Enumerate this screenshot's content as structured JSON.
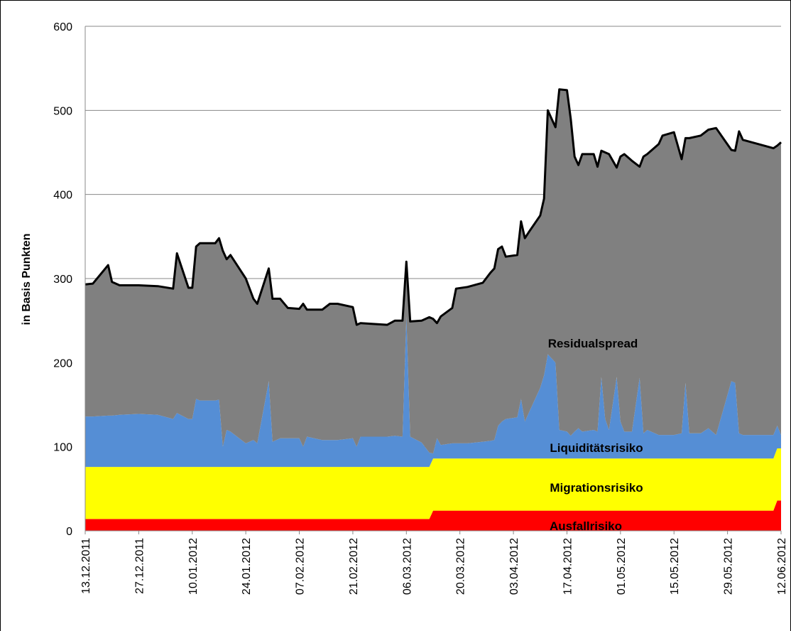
{
  "chart_data": {
    "type": "stacked_area",
    "y_label": "in Basis Punkten",
    "x": [
      "13.12.2011",
      "15.12.2011",
      "19.12.2011",
      "20.12.2011",
      "22.12.2011",
      "27.12.2011",
      "01.01.2012",
      "05.01.2012",
      "06.01.2012",
      "09.01.2012",
      "10.01.2012",
      "11.01.2012",
      "12.01.2012",
      "16.01.2012",
      "17.01.2012",
      "18.01.2012",
      "19.01.2012",
      "20.01.2012",
      "24.01.2012",
      "26.01.2012",
      "27.01.2012",
      "30.01.2012",
      "31.01.2012",
      "02.02.2012",
      "04.02.2012",
      "07.02.2012",
      "08.02.2012",
      "09.02.2012",
      "13.02.2012",
      "15.02.2012",
      "17.02.2012",
      "21.02.2012",
      "22.02.2012",
      "23.02.2012",
      "01.03.2012",
      "03.03.2012",
      "05.03.2012",
      "06.03.2012",
      "07.03.2012",
      "10.03.2012",
      "12.03.2012",
      "13.03.2012",
      "14.03.2012",
      "15.03.2012",
      "18.03.2012",
      "19.03.2012",
      "22.03.2012",
      "26.03.2012",
      "28.03.2012",
      "29.03.2012",
      "30.03.2012",
      "31.03.2012",
      "01.04.2012",
      "04.04.2012",
      "05.04.2012",
      "06.04.2012",
      "07.04.2012",
      "10.04.2012",
      "11.04.2012",
      "12.04.2012",
      "13.04.2012",
      "14.04.2012",
      "15.04.2012",
      "17.04.2012",
      "18.04.2012",
      "19.04.2012",
      "20.04.2012",
      "21.04.2012",
      "24.04.2012",
      "25.04.2012",
      "26.04.2012",
      "27.04.2012",
      "28.04.2012",
      "30.04.2012",
      "01.05.2012",
      "02.05.2012",
      "04.05.2012",
      "06.05.2012",
      "07.05.2012",
      "08.05.2012",
      "11.05.2012",
      "12.05.2012",
      "15.05.2012",
      "17.05.2012",
      "18.05.2012",
      "19.05.2012",
      "22.05.2012",
      "24.05.2012",
      "26.05.2012",
      "30.05.2012",
      "31.05.2012",
      "01.06.2012",
      "02.06.2012",
      "10.06.2012",
      "11.06.2012",
      "12.06.2012"
    ],
    "series": [
      {
        "name": "Ausfallrisiko",
        "color": "#ff0000",
        "values": [
          14,
          14,
          14,
          14,
          14,
          14,
          14,
          14,
          14,
          14,
          14,
          14,
          14,
          14,
          14,
          14,
          14,
          14,
          14,
          14,
          14,
          14,
          14,
          14,
          14,
          14,
          14,
          14,
          14,
          14,
          14,
          14,
          14,
          14,
          14,
          14,
          14,
          14,
          14,
          14,
          14,
          24,
          24,
          24,
          24,
          24,
          24,
          24,
          24,
          24,
          24,
          24,
          24,
          24,
          24,
          24,
          24,
          24,
          24,
          24,
          24,
          24,
          24,
          24,
          24,
          24,
          24,
          24,
          24,
          24,
          24,
          24,
          24,
          24,
          24,
          24,
          24,
          24,
          24,
          24,
          24,
          24,
          24,
          24,
          24,
          24,
          24,
          24,
          24,
          24,
          24,
          24,
          24,
          24,
          36,
          36
        ]
      },
      {
        "name": "Migrationsrisiko",
        "color": "#ffff00",
        "values": [
          62,
          62,
          62,
          62,
          62,
          62,
          62,
          62,
          62,
          62,
          62,
          62,
          62,
          62,
          62,
          62,
          62,
          62,
          62,
          62,
          62,
          62,
          62,
          62,
          62,
          62,
          62,
          62,
          62,
          62,
          62,
          62,
          62,
          62,
          62,
          62,
          62,
          62,
          62,
          62,
          62,
          62,
          62,
          62,
          62,
          62,
          62,
          62,
          62,
          62,
          62,
          62,
          62,
          62,
          62,
          62,
          62,
          62,
          62,
          62,
          62,
          62,
          62,
          62,
          62,
          62,
          62,
          62,
          62,
          62,
          62,
          62,
          62,
          62,
          62,
          62,
          62,
          62,
          62,
          62,
          62,
          62,
          62,
          62,
          62,
          62,
          62,
          62,
          62,
          62,
          62,
          62,
          62,
          62,
          62,
          62
        ]
      },
      {
        "name": "Liquiditätsrisiko",
        "color": "#558ed5",
        "values": [
          60,
          60,
          61,
          61,
          62,
          63,
          62,
          57,
          64,
          57,
          57,
          81,
          79,
          79,
          80,
          24,
          44,
          42,
          28,
          32,
          28,
          102,
          30,
          34,
          34,
          34,
          24,
          36,
          32,
          32,
          32,
          34,
          24,
          36,
          36,
          37,
          36,
          179,
          36,
          29,
          17,
          6,
          24,
          16,
          18,
          18,
          18,
          20,
          21,
          22,
          39,
          44,
          47,
          49,
          71,
          44,
          54,
          84,
          99,
          124,
          119,
          114,
          34,
          32,
          27,
          32,
          36,
          32,
          34,
          32,
          97,
          47,
          34,
          97,
          44,
          32,
          32,
          96,
          30,
          34,
          28,
          28,
          28,
          30,
          90,
          30,
          30,
          36,
          28,
          92,
          90,
          30,
          28,
          28,
          27,
          16
        ]
      },
      {
        "name": "Residualspread",
        "color": "#808080",
        "values": [
          157,
          158,
          179,
          159,
          154,
          153,
          153,
          155,
          190,
          156,
          156,
          181,
          187,
          187,
          192,
          233,
          203,
          210,
          196,
          168,
          166,
          134,
          170,
          166,
          155,
          154,
          170,
          151,
          155,
          162,
          162,
          156,
          145,
          135,
          133,
          137,
          138,
          65,
          137,
          145,
          161,
          160,
          137,
          153,
          161,
          184,
          186,
          189,
          200,
          204,
          210,
          208,
          193,
          193,
          211,
          218,
          215,
          205,
          210,
          290,
          285,
          280,
          405,
          406,
          377,
          327,
          313,
          330,
          328,
          315,
          269,
          317,
          328,
          249,
          315,
          330,
          322,
          251,
          329,
          328,
          346,
          356,
          360,
          326,
          291,
          351,
          354,
          355,
          365,
          275,
          276,
          359,
          351,
          341,
          333,
          348
        ]
      }
    ],
    "outline_color": "#000000",
    "xlim": [
      "13.12.2011",
      "12.06.2012"
    ],
    "xticks": [
      "13.12.2011",
      "27.12.2011",
      "10.01.2012",
      "24.01.2012",
      "07.02.2012",
      "21.02.2012",
      "06.03.2012",
      "20.03.2012",
      "03.04.2012",
      "17.04.2012",
      "01.05.2012",
      "15.05.2012",
      "29.05.2012",
      "12.06.2012"
    ],
    "ylim": [
      0,
      600
    ],
    "yticks": [
      0,
      100,
      200,
      300,
      400,
      500,
      600
    ],
    "grid": true
  }
}
